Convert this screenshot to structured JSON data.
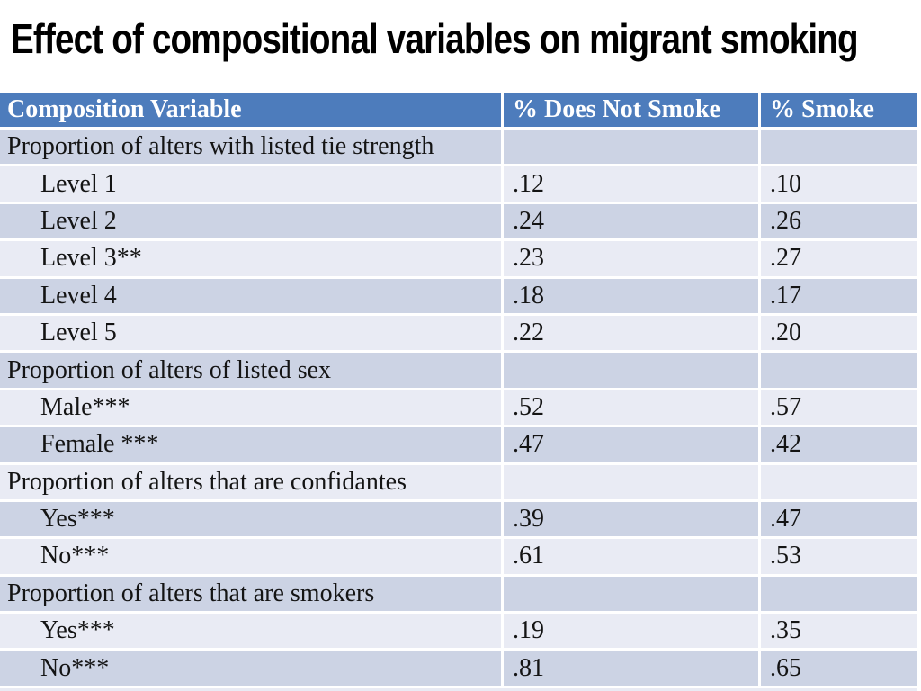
{
  "title": "Effect of compositional variables on migrant smoking",
  "colors": {
    "header_bg": "#4d7cbc",
    "header_text": "#ffffff",
    "band_dark": "#ccd3e4",
    "band_light": "#e9ebf4",
    "body_text": "#141414",
    "separator": "#ffffff",
    "title_text": "#000000"
  },
  "table": {
    "columns": [
      "Composition Variable",
      "% Does Not Smoke",
      "% Smoke"
    ],
    "rows": [
      {
        "type": "section",
        "label": "Proportion of alters with listed tie strength",
        "does_not_smoke": "",
        "smoke": ""
      },
      {
        "type": "item",
        "label": "Level 1",
        "does_not_smoke": ".12",
        "smoke": ".10"
      },
      {
        "type": "item",
        "label": "Level 2",
        "does_not_smoke": ".24",
        "smoke": ".26"
      },
      {
        "type": "item",
        "label": "Level 3**",
        "does_not_smoke": ".23",
        "smoke": ".27"
      },
      {
        "type": "item",
        "label": "Level 4",
        "does_not_smoke": ".18",
        "smoke": ".17"
      },
      {
        "type": "item",
        "label": "Level 5",
        "does_not_smoke": ".22",
        "smoke": ".20"
      },
      {
        "type": "section",
        "label": "Proportion of alters of listed sex",
        "does_not_smoke": "",
        "smoke": ""
      },
      {
        "type": "item",
        "label": "Male***",
        "does_not_smoke": ".52",
        "smoke": ".57"
      },
      {
        "type": "item",
        "label": "Female ***",
        "does_not_smoke": ".47",
        "smoke": ".42"
      },
      {
        "type": "section",
        "label": "Proportion of alters that are confidantes",
        "does_not_smoke": "",
        "smoke": ""
      },
      {
        "type": "item",
        "label": "Yes***",
        "does_not_smoke": ".39",
        "smoke": ".47"
      },
      {
        "type": "item",
        "label": "No***",
        "does_not_smoke": ".61",
        "smoke": ".53"
      },
      {
        "type": "section",
        "label": "Proportion of alters that are smokers",
        "does_not_smoke": "",
        "smoke": ""
      },
      {
        "type": "item",
        "label": "Yes***",
        "does_not_smoke": ".19",
        "smoke": ".35"
      },
      {
        "type": "item",
        "label": "No***",
        "does_not_smoke": ".81",
        "smoke": ".65"
      }
    ]
  }
}
